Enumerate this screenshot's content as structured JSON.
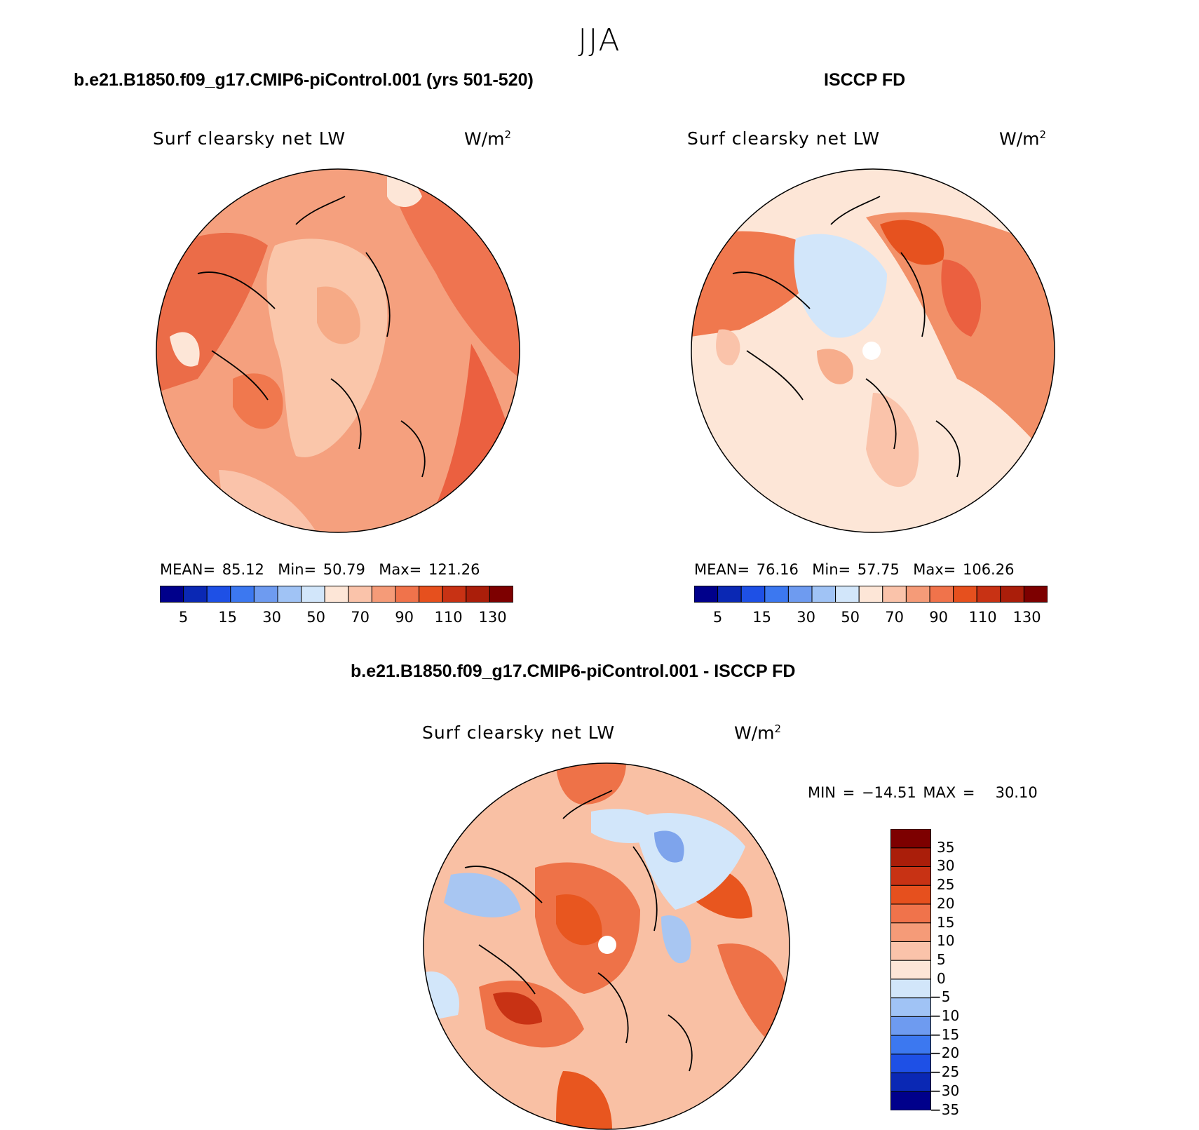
{
  "figure": {
    "season": "JJA"
  },
  "panels": [
    {
      "title": "b.e21.B1850.f09_g17.CMIP6-piControl.001 (yrs 501-520)",
      "subtitle": "Surf clearsky net LW",
      "units_base": "W/m",
      "units_exp": "2",
      "stats": {
        "mean_label": "MEAN=",
        "mean": "85.12",
        "min_label": "Min=",
        "min": "50.79",
        "max_label": "Max=",
        "max": "121.26"
      },
      "colorbar_ticks": [
        "5",
        "15",
        "30",
        "50",
        "70",
        "90",
        "110",
        "130"
      ]
    },
    {
      "title": "ISCCP FD",
      "subtitle": "Surf clearsky net LW",
      "units_base": "W/m",
      "units_exp": "2",
      "stats": {
        "mean_label": "MEAN=",
        "mean": "76.16",
        "min_label": "Min=",
        "min": "57.75",
        "max_label": "Max=",
        "max": "106.26"
      },
      "colorbar_ticks": [
        "5",
        "15",
        "30",
        "50",
        "70",
        "90",
        "110",
        "130"
      ]
    },
    {
      "title": "b.e21.B1850.f09_g17.CMIP6-piControl.001 - ISCCP FD",
      "subtitle": "Surf clearsky net LW",
      "units_base": "W/m",
      "units_exp": "2",
      "stats": {
        "min_label": "MIN =",
        "min": "−14.51",
        "max_label": "MAX =",
        "max": "30.10"
      },
      "colorbar_ticks": [
        "35",
        "30",
        "25",
        "20",
        "15",
        "10",
        "5",
        "0",
        "−5",
        "−10",
        "−15",
        "−20",
        "−25",
        "−30",
        "−35"
      ]
    }
  ],
  "colors": {
    "abs_scale": [
      "#00008b",
      "#0a28b4",
      "#1e50e6",
      "#3c78f0",
      "#6e9bf0",
      "#a0c3f5",
      "#d2e6fa",
      "#fde6d7",
      "#fac3aa",
      "#f59b78",
      "#f0734b",
      "#e6501e",
      "#c83214",
      "#aa1e0a",
      "#7d0000"
    ],
    "diff_scale": [
      "#00008b",
      "#0a28b4",
      "#1e50e6",
      "#3c78f0",
      "#6e9bf0",
      "#a0c3f5",
      "#d2e6fa",
      "#fde6d7",
      "#fac3aa",
      "#f59b78",
      "#f0734b",
      "#e6501e",
      "#c83214",
      "#aa1e0a",
      "#7d0000"
    ]
  }
}
